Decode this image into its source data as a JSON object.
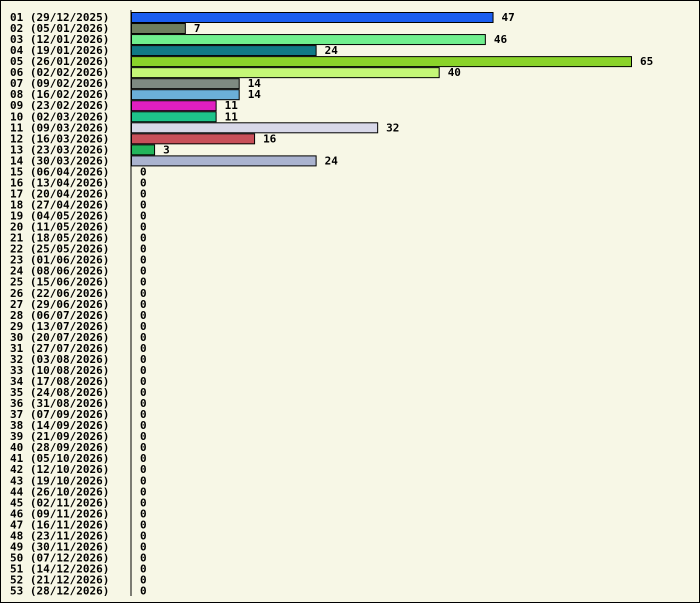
{
  "chart_data": {
    "type": "bar",
    "orientation": "horizontal",
    "grid": false,
    "legend": "none",
    "xlim": [
      0,
      65
    ],
    "categories": [
      "01 (29/12/2025)",
      "02 (05/01/2026)",
      "03 (12/01/2026)",
      "04 (19/01/2026)",
      "05 (26/01/2026)",
      "06 (02/02/2026)",
      "07 (09/02/2026)",
      "08 (16/02/2026)",
      "09 (23/02/2026)",
      "10 (02/03/2026)",
      "11 (09/03/2026)",
      "12 (16/03/2026)",
      "13 (23/03/2026)",
      "14 (30/03/2026)",
      "15 (06/04/2026)",
      "16 (13/04/2026)",
      "17 (20/04/2026)",
      "18 (27/04/2026)",
      "19 (04/05/2026)",
      "20 (11/05/2026)",
      "21 (18/05/2026)",
      "22 (25/05/2026)",
      "23 (01/06/2026)",
      "24 (08/06/2026)",
      "25 (15/06/2026)",
      "26 (22/06/2026)",
      "27 (29/06/2026)",
      "28 (06/07/2026)",
      "29 (13/07/2026)",
      "30 (20/07/2026)",
      "31 (27/07/2026)",
      "32 (03/08/2026)",
      "33 (10/08/2026)",
      "34 (17/08/2026)",
      "35 (24/08/2026)",
      "36 (31/08/2026)",
      "37 (07/09/2026)",
      "38 (14/09/2026)",
      "39 (21/09/2026)",
      "40 (28/09/2026)",
      "41 (05/10/2026)",
      "42 (12/10/2026)",
      "43 (19/10/2026)",
      "44 (26/10/2026)",
      "45 (02/11/2026)",
      "46 (09/11/2026)",
      "47 (16/11/2026)",
      "48 (23/11/2026)",
      "49 (30/11/2026)",
      "50 (07/12/2026)",
      "51 (14/12/2026)",
      "52 (21/12/2026)",
      "53 (28/12/2026)"
    ],
    "values": [
      47,
      7,
      46,
      24,
      65,
      40,
      14,
      14,
      11,
      11,
      32,
      16,
      3,
      24,
      0,
      0,
      0,
      0,
      0,
      0,
      0,
      0,
      0,
      0,
      0,
      0,
      0,
      0,
      0,
      0,
      0,
      0,
      0,
      0,
      0,
      0,
      0,
      0,
      0,
      0,
      0,
      0,
      0,
      0,
      0,
      0,
      0,
      0,
      0,
      0,
      0,
      0,
      0
    ],
    "colors": [
      "#1a5ef0",
      "#6e7e5e",
      "#70ef8e",
      "#117a86",
      "#8ad32a",
      "#c4f777",
      "#7e8a82",
      "#6bafd9",
      "#e01fc0",
      "#1ec48a",
      "#d8d8e8",
      "#c8505a",
      "#23b55b",
      "#aab3cf"
    ]
  }
}
